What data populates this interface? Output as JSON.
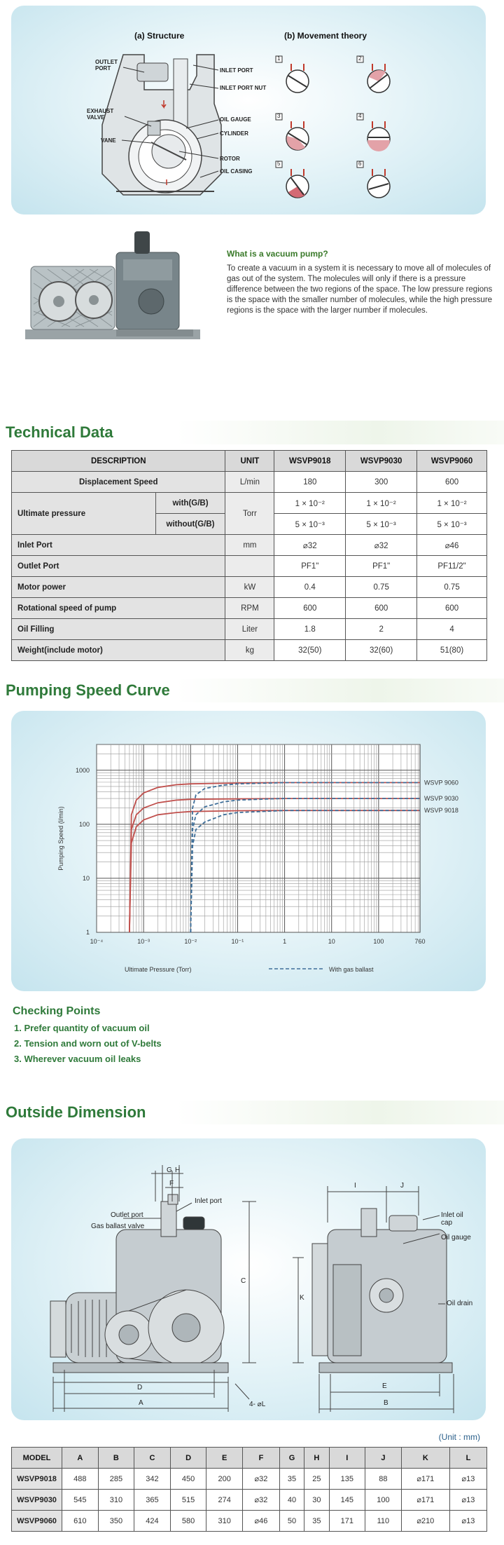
{
  "structure_panel": {
    "title_a": "(a) Structure",
    "title_b": "(b) Movement theory",
    "labels_left": [
      "OUTLET PORT",
      "EXHAUST VALVE",
      "VANE"
    ],
    "labels_right": [
      "INLET PORT",
      "INLET PORT NUT",
      "OIL GAUGE",
      "CYLINDER",
      "ROTOR",
      "OIL CASING"
    ],
    "steps": [
      "1",
      "2",
      "3",
      "4",
      "5",
      "6"
    ]
  },
  "intro": {
    "title": "What is a vacuum pump?",
    "text": "To create a vacuum in a system it is necessary to move all of molecules of gas out of the system. The molecules will only if there is a pressure difference between the two regions of the space. The low pressure regions is the space with the smaller number of molecules, while the high pressure regions is the space with the larger number if molecules."
  },
  "tech": {
    "title": "Technical Data",
    "headers": [
      "DESCRIPTION",
      "UNIT",
      "WSVP9018",
      "WSVP9030",
      "WSVP9060"
    ],
    "rows": [
      {
        "desc": "Displacement Speed",
        "unit": "L/min",
        "v": [
          "180",
          "300",
          "600"
        ]
      },
      {
        "desc": "Ultimate pressure",
        "sub": "with(G/B)",
        "unit": "Torr",
        "v": [
          "1 × 10⁻²",
          "1 × 10⁻²",
          "1 × 10⁻²"
        ]
      },
      {
        "sub": "without(G/B)",
        "v": [
          "5 × 10⁻³",
          "5 × 10⁻³",
          "5 × 10⁻³"
        ]
      },
      {
        "desc": "Inlet Port",
        "unit": "mm",
        "v": [
          "⌀32",
          "⌀32",
          "⌀46"
        ]
      },
      {
        "desc": "Outlet Port",
        "unit": "",
        "v": [
          "PF1\"",
          "PF1\"",
          "PF11/2\""
        ]
      },
      {
        "desc": "Motor power",
        "unit": "kW",
        "v": [
          "0.4",
          "0.75",
          "0.75"
        ]
      },
      {
        "desc": "Rotational speed of pump",
        "unit": "RPM",
        "v": [
          "600",
          "600",
          "600"
        ]
      },
      {
        "desc": "Oil Filling",
        "unit": "Liter",
        "v": [
          "1.8",
          "2",
          "4"
        ]
      },
      {
        "desc": "Weight(include motor)",
        "unit": "kg",
        "v": [
          "32(50)",
          "32(60)",
          "51(80)"
        ]
      }
    ]
  },
  "pumping": {
    "title": "Pumping Speed Curve"
  },
  "chart_data": {
    "type": "line",
    "title": "",
    "xlabel": "Ultimate Pressure (Torr)",
    "ylabel": "Pumping Speed (l/min)",
    "x_scale": "log",
    "y_scale": "log",
    "xlim": [
      0.0001,
      760
    ],
    "ylim": [
      1,
      3000
    ],
    "x_tick_labels": [
      "10⁻⁴",
      "10⁻³",
      "10⁻²",
      "10⁻¹",
      "1",
      "10",
      "100",
      "760"
    ],
    "x_tick_values": [
      0.0001,
      0.001,
      0.01,
      0.1,
      1,
      10,
      100,
      760
    ],
    "y_tick_labels": [
      "1",
      "10",
      "100",
      "1000"
    ],
    "y_tick_values": [
      1,
      10,
      100,
      1000
    ],
    "grid": true,
    "legend": "With gas ballast",
    "series": [
      {
        "name": "WSVP 9060",
        "style": "solid",
        "color": "#c0504d",
        "x": [
          0.0005,
          0.00055,
          0.0007,
          0.001,
          0.002,
          0.005,
          0.01,
          0.1,
          1,
          10,
          100,
          760
        ],
        "y": [
          1,
          150,
          280,
          380,
          480,
          540,
          560,
          580,
          590,
          590,
          590,
          590
        ]
      },
      {
        "name": "WSVP 9030",
        "style": "solid",
        "color": "#c0504d",
        "x": [
          0.0005,
          0.00055,
          0.0007,
          0.001,
          0.002,
          0.005,
          0.01,
          0.1,
          1,
          10,
          100,
          760
        ],
        "y": [
          1,
          80,
          150,
          200,
          250,
          280,
          290,
          295,
          300,
          300,
          300,
          300
        ]
      },
      {
        "name": "WSVP 9018",
        "style": "solid",
        "color": "#c0504d",
        "x": [
          0.0005,
          0.00055,
          0.0007,
          0.001,
          0.002,
          0.005,
          0.01,
          0.1,
          1,
          10,
          100,
          760
        ],
        "y": [
          1,
          45,
          90,
          120,
          150,
          165,
          172,
          178,
          180,
          180,
          180,
          180
        ]
      },
      {
        "name": "",
        "style": "dashed",
        "color": "#3f6f99",
        "x": [
          0.01,
          0.011,
          0.013,
          0.02,
          0.05,
          0.1,
          0.5,
          1,
          10,
          100,
          760
        ],
        "y": [
          1,
          200,
          350,
          460,
          530,
          560,
          580,
          590,
          590,
          590,
          590
        ]
      },
      {
        "name": "",
        "style": "dashed",
        "color": "#3f6f99",
        "x": [
          0.01,
          0.011,
          0.013,
          0.02,
          0.05,
          0.1,
          0.5,
          1,
          10,
          100,
          760
        ],
        "y": [
          1,
          80,
          150,
          210,
          260,
          280,
          295,
          300,
          300,
          300,
          300
        ]
      },
      {
        "name": "",
        "style": "dashed",
        "color": "#3f6f99",
        "x": [
          0.01,
          0.011,
          0.013,
          0.02,
          0.05,
          0.1,
          0.5,
          1,
          10,
          100,
          760
        ],
        "y": [
          1,
          40,
          80,
          110,
          150,
          165,
          175,
          180,
          180,
          180,
          180
        ]
      }
    ]
  },
  "checking": {
    "title": "Checking Points",
    "items": [
      "1. Prefer quantity of vacuum oil",
      "2. Tension and worn out of V-belts",
      "3. Wherever vacuum oil leaks"
    ]
  },
  "outside": {
    "title": "Outside Dimension",
    "labels": {
      "outlet": "Outlet port",
      "gasballast": "Gas ballast valve",
      "inlet": "Inlet port",
      "inletcap": "Inlet oil cap",
      "oilgauge": "Oil gauge",
      "oildrain": "Oil drain",
      "G": "G",
      "H": "H",
      "F": "F",
      "C": "C",
      "D": "D",
      "A": "A",
      "L": "4- ⌀L",
      "I": "I",
      "J": "J",
      "K": "K",
      "E": "E",
      "B": "B"
    }
  },
  "dims": {
    "unit": "(Unit : mm)",
    "headers": [
      "MODEL",
      "A",
      "B",
      "C",
      "D",
      "E",
      "F",
      "G",
      "H",
      "I",
      "J",
      "K",
      "L"
    ],
    "rows": [
      [
        "WSVP9018",
        "488",
        "285",
        "342",
        "450",
        "200",
        "⌀32",
        "35",
        "25",
        "135",
        "88",
        "⌀171",
        "⌀13"
      ],
      [
        "WSVP9030",
        "545",
        "310",
        "365",
        "515",
        "274",
        "⌀32",
        "40",
        "30",
        "145",
        "100",
        "⌀171",
        "⌀13"
      ],
      [
        "WSVP9060",
        "610",
        "350",
        "424",
        "580",
        "310",
        "⌀46",
        "50",
        "35",
        "171",
        "110",
        "⌀210",
        "⌀13"
      ]
    ]
  }
}
